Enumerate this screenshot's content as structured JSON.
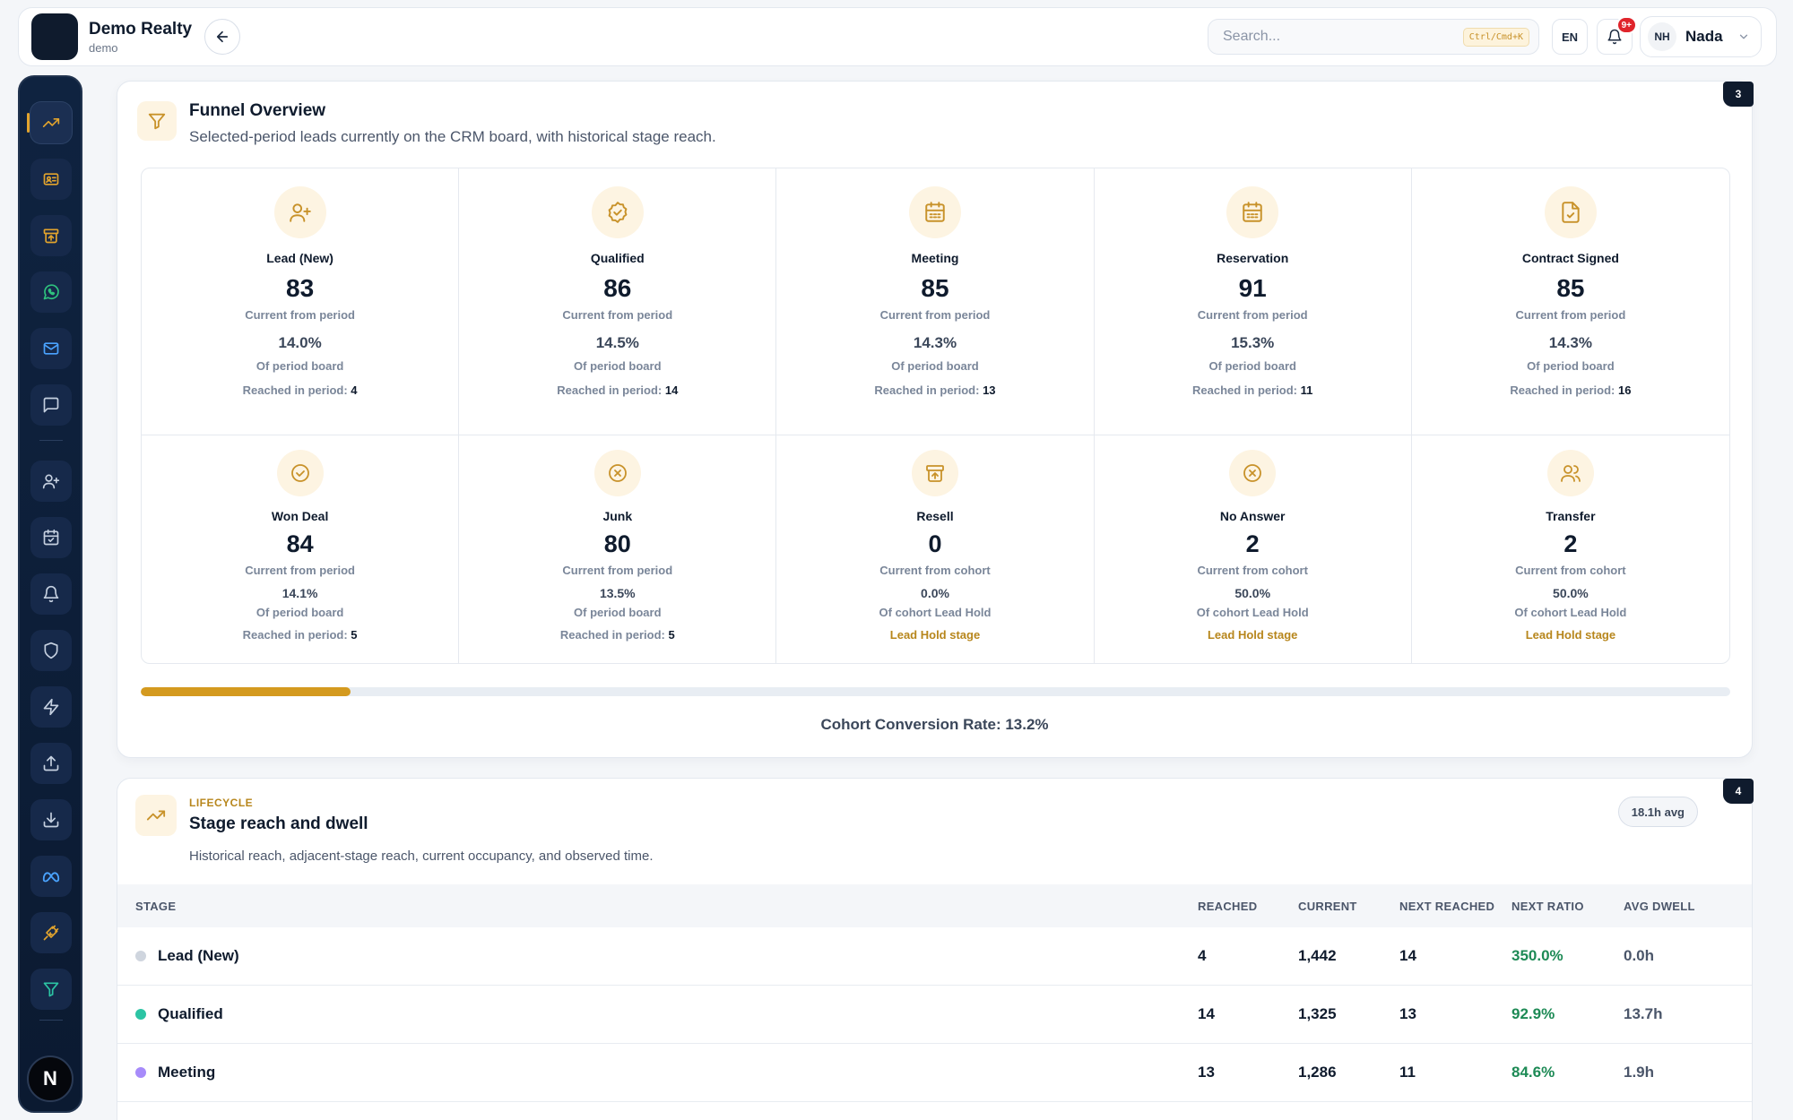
{
  "app": {
    "brand_name": "Demo Realty",
    "brand_sub": "demo"
  },
  "topbar": {
    "search_placeholder": "Search...",
    "search_shortcut": "Ctrl/Cmd+K",
    "language": "EN",
    "notifications_badge": "9+",
    "user_initials": "NH",
    "user_name": "Nada"
  },
  "sidebar": {
    "items": [
      {
        "icon": "trending-up-icon",
        "active": true
      },
      {
        "icon": "id-card-icon"
      },
      {
        "icon": "archive-icon"
      },
      {
        "icon": "whatsapp-icon"
      },
      {
        "icon": "mail-icon"
      },
      {
        "icon": "chat-icon"
      },
      {
        "icon": "user-plus-icon"
      },
      {
        "icon": "calendar-check-icon"
      },
      {
        "icon": "bell-icon"
      },
      {
        "icon": "shield-icon"
      },
      {
        "icon": "lightning-icon"
      },
      {
        "icon": "upload-icon"
      },
      {
        "icon": "download-icon"
      },
      {
        "icon": "meta-icon"
      },
      {
        "icon": "plug-icon"
      },
      {
        "icon": "funnel-icon"
      }
    ],
    "user_initial": "N"
  },
  "funnel": {
    "badge": "3",
    "title": "Funnel Overview",
    "subtitle": "Selected-period leads currently on the CRM board, with historical stage reach.",
    "stages": [
      {
        "name": "Lead (New)",
        "icon": "user-plus-icon",
        "count": "83",
        "count_label": "Current from period",
        "pct": "14.0%",
        "pct_label": "Of period board",
        "reached_label": "Reached in period:",
        "reached": "4"
      },
      {
        "name": "Qualified",
        "icon": "badge-check-icon",
        "count": "86",
        "count_label": "Current from period",
        "pct": "14.5%",
        "pct_label": "Of period board",
        "reached_label": "Reached in period:",
        "reached": "14"
      },
      {
        "name": "Meeting",
        "icon": "calendar-icon",
        "count": "85",
        "count_label": "Current from period",
        "pct": "14.3%",
        "pct_label": "Of period board",
        "reached_label": "Reached in period:",
        "reached": "13"
      },
      {
        "name": "Reservation",
        "icon": "calendar-icon",
        "count": "91",
        "count_label": "Current from period",
        "pct": "15.3%",
        "pct_label": "Of period board",
        "reached_label": "Reached in period:",
        "reached": "11"
      },
      {
        "name": "Contract Signed",
        "icon": "file-check-icon",
        "count": "85",
        "count_label": "Current from period",
        "pct": "14.3%",
        "pct_label": "Of period board",
        "reached_label": "Reached in period:",
        "reached": "16"
      },
      {
        "name": "Won Deal",
        "icon": "check-circle-icon",
        "count": "84",
        "count_label": "Current from period",
        "pct": "14.1%",
        "pct_label": "Of period board",
        "reached_label": "Reached in period:",
        "reached": "5"
      },
      {
        "name": "Junk",
        "icon": "x-circle-icon",
        "count": "80",
        "count_label": "Current from period",
        "pct": "13.5%",
        "pct_label": "Of period board",
        "reached_label": "Reached in period:",
        "reached": "5"
      },
      {
        "name": "Resell",
        "icon": "archive-icon",
        "count": "0",
        "count_label": "Current from cohort",
        "pct": "0.0%",
        "pct_label": "Of cohort Lead Hold",
        "hold": "Lead Hold stage"
      },
      {
        "name": "No Answer",
        "icon": "x-circle-icon",
        "count": "2",
        "count_label": "Current from cohort",
        "pct": "50.0%",
        "pct_label": "Of cohort Lead Hold",
        "hold": "Lead Hold stage"
      },
      {
        "name": "Transfer",
        "icon": "users-icon",
        "count": "2",
        "count_label": "Current from cohort",
        "pct": "50.0%",
        "pct_label": "Of cohort Lead Hold",
        "hold": "Lead Hold stage"
      }
    ],
    "conversion_fraction": 0.132,
    "conversion_label": "Cohort Conversion Rate: 13.2%"
  },
  "lifecycle": {
    "badge": "4",
    "eyebrow": "LIFECYCLE",
    "title": "Stage reach and dwell",
    "subtitle": "Historical reach, adjacent-stage reach, current occupancy, and observed time.",
    "avg_pill": "18.1h avg",
    "columns": {
      "stage": "STAGE",
      "reached": "REACHED",
      "current": "CURRENT",
      "next_reached": "NEXT REACHED",
      "next_ratio": "NEXT RATIO",
      "avg_dwell": "AVG DWELL"
    },
    "rows": [
      {
        "stage": "Lead (New)",
        "dot_color": "#cfd5de",
        "reached": "4",
        "current": "1,442",
        "next_reached": "14",
        "next_ratio": "350.0%",
        "avg_dwell": "0.0h"
      },
      {
        "stage": "Qualified",
        "dot_color": "#2cc4a4",
        "reached": "14",
        "current": "1,325",
        "next_reached": "13",
        "next_ratio": "92.9%",
        "avg_dwell": "13.7h"
      },
      {
        "stage": "Meeting",
        "dot_color": "#a78bfa",
        "reached": "13",
        "current": "1,286",
        "next_reached": "11",
        "next_ratio": "84.6%",
        "avg_dwell": "1.9h"
      }
    ]
  },
  "colors": {
    "accent": "#d49a1f",
    "sidebar_bg": "#0f2340",
    "positive": "#1d8a55"
  }
}
